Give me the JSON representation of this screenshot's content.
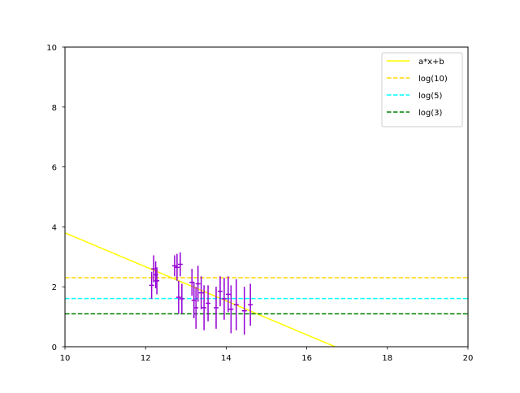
{
  "chart_data": {
    "type": "scatter",
    "xlim": [
      10,
      20
    ],
    "ylim": [
      0,
      10
    ],
    "x_ticks": [
      "10",
      "12",
      "14",
      "16",
      "18",
      "20"
    ],
    "y_ticks": [
      "0",
      "2",
      "4",
      "6",
      "8",
      "10"
    ],
    "grid": false,
    "legend_position": "top-right",
    "lines": [
      {
        "name": "a*x+b",
        "kind": "line",
        "color": "#ffff00",
        "dash": "solid",
        "points": [
          [
            10,
            3.8
          ],
          [
            16.7,
            0.0
          ]
        ]
      },
      {
        "name": "log(10)",
        "kind": "hline",
        "color": "#ffd700",
        "dash": "dashed",
        "y": 2.303
      },
      {
        "name": "log(5)",
        "kind": "hline",
        "color": "#00ffff",
        "dash": "dashed",
        "y": 1.609
      },
      {
        "name": "log(3)",
        "kind": "hline",
        "color": "#008000",
        "dash": "dashed",
        "y": 1.099
      }
    ],
    "errorbar_series": {
      "color": "#9400d3",
      "points": [
        {
          "x": 12.15,
          "y": 2.05,
          "xerr": 0.06,
          "yerr": 0.45
        },
        {
          "x": 12.2,
          "y": 2.6,
          "xerr": 0.06,
          "yerr": 0.45
        },
        {
          "x": 12.25,
          "y": 2.4,
          "xerr": 0.06,
          "yerr": 0.45
        },
        {
          "x": 12.28,
          "y": 2.2,
          "xerr": 0.06,
          "yerr": 0.45
        },
        {
          "x": 12.72,
          "y": 2.7,
          "xerr": 0.06,
          "yerr": 0.35
        },
        {
          "x": 12.78,
          "y": 2.65,
          "xerr": 0.06,
          "yerr": 0.45
        },
        {
          "x": 12.82,
          "y": 1.65,
          "xerr": 0.06,
          "yerr": 0.55
        },
        {
          "x": 12.86,
          "y": 2.75,
          "xerr": 0.06,
          "yerr": 0.4
        },
        {
          "x": 12.9,
          "y": 1.6,
          "xerr": 0.06,
          "yerr": 0.5
        },
        {
          "x": 13.15,
          "y": 2.15,
          "xerr": 0.06,
          "yerr": 0.45
        },
        {
          "x": 13.2,
          "y": 1.55,
          "xerr": 0.06,
          "yerr": 0.6
        },
        {
          "x": 13.25,
          "y": 1.3,
          "xerr": 0.06,
          "yerr": 0.7
        },
        {
          "x": 13.3,
          "y": 2.1,
          "xerr": 0.06,
          "yerr": 0.6
        },
        {
          "x": 13.38,
          "y": 1.8,
          "xerr": 0.06,
          "yerr": 0.55
        },
        {
          "x": 13.45,
          "y": 1.3,
          "xerr": 0.06,
          "yerr": 0.75
        },
        {
          "x": 13.55,
          "y": 1.45,
          "xerr": 0.06,
          "yerr": 0.6
        },
        {
          "x": 13.75,
          "y": 1.3,
          "xerr": 0.06,
          "yerr": 0.7
        },
        {
          "x": 13.85,
          "y": 1.85,
          "xerr": 0.06,
          "yerr": 0.5
        },
        {
          "x": 13.95,
          "y": 1.6,
          "xerr": 0.06,
          "yerr": 0.7
        },
        {
          "x": 14.05,
          "y": 1.75,
          "xerr": 0.06,
          "yerr": 0.6
        },
        {
          "x": 14.12,
          "y": 1.25,
          "xerr": 0.06,
          "yerr": 0.8
        },
        {
          "x": 14.25,
          "y": 1.4,
          "xerr": 0.06,
          "yerr": 0.85
        },
        {
          "x": 14.45,
          "y": 1.2,
          "xerr": 0.06,
          "yerr": 0.8
        },
        {
          "x": 14.6,
          "y": 1.4,
          "xerr": 0.06,
          "yerr": 0.7
        }
      ]
    }
  }
}
